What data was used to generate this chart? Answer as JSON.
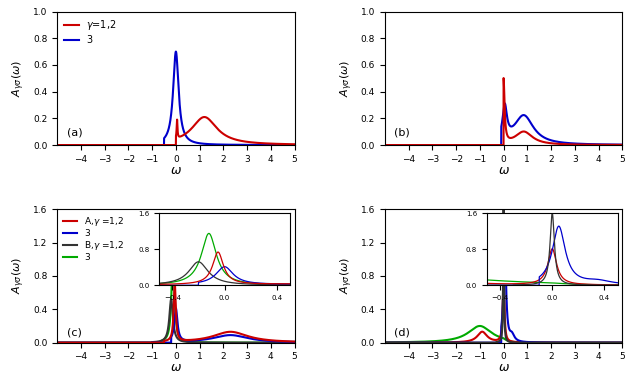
{
  "fig_width": 6.35,
  "fig_height": 3.85,
  "dpi": 100,
  "background": "#ffffff",
  "colors": {
    "red": "#cc0000",
    "blue": "#0000cc",
    "black": "#333333",
    "green": "#00aa00"
  },
  "panel_a": {
    "xlim": [
      -5,
      5
    ],
    "ylim": [
      0,
      1.0
    ],
    "yticks": [
      0.0,
      0.2,
      0.4,
      0.6,
      0.8,
      1.0
    ]
  },
  "panel_b": {
    "xlim": [
      -5,
      5
    ],
    "ylim": [
      0,
      1.0
    ],
    "yticks": [
      0.0,
      0.2,
      0.4,
      0.6,
      0.8,
      1.0
    ]
  },
  "panel_c": {
    "xlim": [
      -5,
      5
    ],
    "ylim": [
      0,
      1.6
    ],
    "yticks": [
      0.0,
      0.4,
      0.8,
      1.2,
      1.6
    ]
  },
  "panel_d": {
    "xlim": [
      -5,
      5
    ],
    "ylim": [
      0,
      1.6
    ],
    "yticks": [
      0.0,
      0.4,
      0.8,
      1.2,
      1.6
    ]
  }
}
